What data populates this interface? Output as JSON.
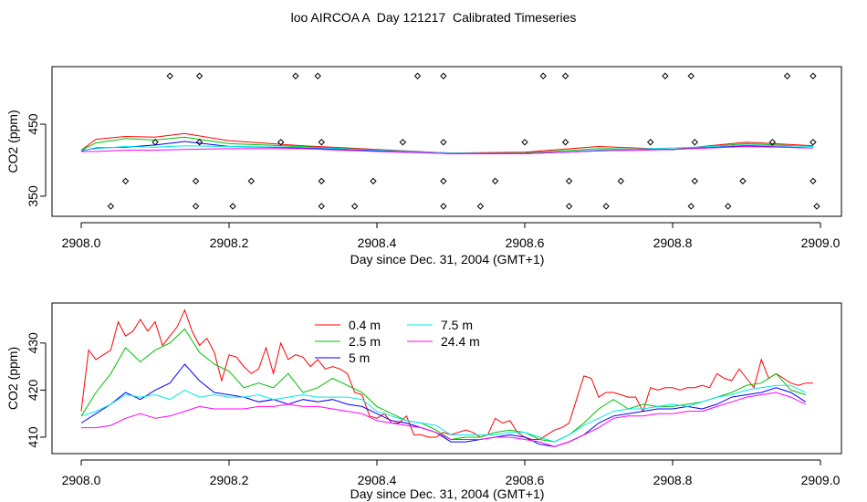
{
  "title": "loo AIRCOA A  Day 121217  Calibrated Timeseries",
  "chart_data": [
    {
      "type": "line",
      "xlabel": "Day since Dec. 31, 2004 (GMT+1)",
      "ylabel": "CO2 (ppm)",
      "xlim": [
        2908.0,
        2909.0
      ],
      "ylim": [
        322,
        530
      ],
      "xticks": [
        "2908.0",
        "2908.2",
        "2908.4",
        "2908.6",
        "2908.8",
        "2909.0"
      ],
      "yticks": [
        "350",
        "450"
      ],
      "legend": "none",
      "series": [
        {
          "color": "#ff0000",
          "x": [
            2908.0,
            2908.02,
            2908.06,
            2908.1,
            2908.14,
            2908.2,
            2908.3,
            2908.4,
            2908.5,
            2908.6,
            2908.7,
            2908.8,
            2908.9,
            2908.99
          ],
          "y": [
            414,
            429,
            433,
            432,
            437,
            427,
            420,
            415,
            410,
            411,
            419,
            415,
            425,
            420
          ]
        },
        {
          "color": "#00c000",
          "x": [
            2908.0,
            2908.02,
            2908.06,
            2908.1,
            2908.14,
            2908.2,
            2908.3,
            2908.4,
            2908.5,
            2908.6,
            2908.7,
            2908.8,
            2908.9,
            2908.99
          ],
          "y": [
            414,
            424,
            430,
            428,
            432,
            423,
            419,
            414,
            409,
            410,
            416,
            415,
            423,
            419
          ]
        },
        {
          "color": "#0000ff",
          "x": [
            2908.0,
            2908.02,
            2908.06,
            2908.1,
            2908.14,
            2908.2,
            2908.3,
            2908.4,
            2908.5,
            2908.6,
            2908.7,
            2908.8,
            2908.9,
            2908.99
          ],
          "y": [
            413,
            417,
            418,
            421,
            426,
            419,
            417,
            413,
            409,
            409,
            413,
            415,
            420,
            417
          ]
        },
        {
          "color": "#00e8e8",
          "x": [
            2908.0,
            2908.02,
            2908.06,
            2908.1,
            2908.14,
            2908.2,
            2908.3,
            2908.4,
            2908.5,
            2908.6,
            2908.7,
            2908.8,
            2908.9,
            2908.99
          ],
          "y": [
            414,
            416,
            419,
            418,
            420,
            419,
            418,
            414,
            410,
            409,
            414,
            417,
            421,
            419
          ]
        },
        {
          "color": "#ff00ff",
          "x": [
            2908.0,
            2908.02,
            2908.06,
            2908.1,
            2908.14,
            2908.2,
            2908.3,
            2908.4,
            2908.5,
            2908.6,
            2908.7,
            2908.8,
            2908.9,
            2908.99
          ],
          "y": [
            412,
            412,
            414,
            414,
            415,
            416,
            416,
            412,
            409,
            409,
            413,
            415,
            419,
            417
          ]
        }
      ],
      "markers": [
        {
          "x": [
            2908.12,
            2908.16,
            2908.29,
            2908.32,
            2908.455,
            2908.49,
            2908.625,
            2908.655,
            2908.79,
            2908.825,
            2908.955,
            2908.99
          ],
          "y": 517
        },
        {
          "x": [
            2908.1,
            2908.16,
            2908.27,
            2908.325,
            2908.435,
            2908.49,
            2908.6,
            2908.655,
            2908.77,
            2908.83,
            2908.935,
            2908.99
          ],
          "y": 425
        },
        {
          "x": [
            2908.06,
            2908.155,
            2908.23,
            2908.325,
            2908.395,
            2908.49,
            2908.56,
            2908.66,
            2908.73,
            2908.83,
            2908.895,
            2908.99
          ],
          "y": 371
        },
        {
          "x": [
            2908.04,
            2908.155,
            2908.205,
            2908.325,
            2908.37,
            2908.49,
            2908.54,
            2908.66,
            2908.71,
            2908.825,
            2908.875,
            2908.995
          ],
          "y": 336
        }
      ]
    },
    {
      "type": "line",
      "xlabel": "Day since Dec. 31, 2004 (GMT+1)",
      "ylabel": "CO2 (ppm)",
      "xlim": [
        2908.0,
        2909.0
      ],
      "ylim": [
        406.5,
        438.5
      ],
      "xticks": [
        "2908.0",
        "2908.2",
        "2908.4",
        "2908.6",
        "2908.8",
        "2909.0"
      ],
      "yticks": [
        "410",
        "420",
        "430"
      ],
      "legend": "top-left",
      "series": [
        {
          "name": "0.4 m",
          "color": "#ff0000",
          "x": [
            2908.0,
            2908.01,
            2908.02,
            2908.03,
            2908.04,
            2908.05,
            2908.06,
            2908.07,
            2908.08,
            2908.09,
            2908.1,
            2908.11,
            2908.12,
            2908.13,
            2908.14,
            2908.15,
            2908.16,
            2908.17,
            2908.18,
            2908.19,
            2908.2,
            2908.21,
            2908.22,
            2908.23,
            2908.24,
            2908.25,
            2908.26,
            2908.27,
            2908.28,
            2908.29,
            2908.3,
            2908.31,
            2908.32,
            2908.33,
            2908.34,
            2908.35,
            2908.36,
            2908.37,
            2908.38,
            2908.39,
            2908.4,
            2908.41,
            2908.42,
            2908.43,
            2908.44,
            2908.45,
            2908.46,
            2908.47,
            2908.48,
            2908.49,
            2908.5,
            2908.51,
            2908.52,
            2908.53,
            2908.54,
            2908.55,
            2908.56,
            2908.57,
            2908.58,
            2908.59,
            2908.6,
            2908.61,
            2908.62,
            2908.63,
            2908.64,
            2908.65,
            2908.66,
            2908.67,
            2908.68,
            2908.69,
            2908.7,
            2908.71,
            2908.72,
            2908.73,
            2908.74,
            2908.75,
            2908.76,
            2908.77,
            2908.78,
            2908.79,
            2908.8,
            2908.81,
            2908.82,
            2908.83,
            2908.84,
            2908.85,
            2908.86,
            2908.87,
            2908.88,
            2908.89,
            2908.9,
            2908.91,
            2908.92,
            2908.93,
            2908.94,
            2908.95,
            2908.96,
            2908.97,
            2908.98,
            2908.99
          ],
          "y": [
            415.5,
            428.5,
            426.5,
            427.5,
            428.5,
            434.5,
            431.5,
            432.5,
            435,
            432.5,
            434.5,
            429.5,
            431.5,
            433.5,
            437,
            432.5,
            429.5,
            431,
            428,
            422,
            427.5,
            427,
            425,
            423.5,
            424.5,
            429,
            423.5,
            430,
            426.5,
            427.5,
            427,
            425,
            426.5,
            424.5,
            425,
            424.5,
            423.5,
            419.5,
            419,
            414.5,
            414,
            415,
            413,
            413,
            414.5,
            410.5,
            410.5,
            410,
            410,
            411,
            410.5,
            411,
            411.5,
            411,
            410,
            410.5,
            414,
            413,
            413.5,
            411,
            410,
            409.5,
            409.5,
            410.5,
            411.5,
            412,
            413,
            418,
            423,
            422.5,
            418.5,
            419.5,
            419.5,
            419,
            418.5,
            418.5,
            415.5,
            420.5,
            420,
            420.5,
            420.5,
            420,
            420.5,
            420.5,
            421,
            420.5,
            423.5,
            422.5,
            422,
            424.5,
            422.5,
            420.5,
            426.5,
            422.5,
            423.5,
            422.5,
            421.5,
            421,
            421.5,
            421.5
          ]
        },
        {
          "name": "2.5 m",
          "color": "#00c000",
          "x": [
            2908.0,
            2908.02,
            2908.04,
            2908.06,
            2908.08,
            2908.1,
            2908.12,
            2908.14,
            2908.16,
            2908.18,
            2908.2,
            2908.22,
            2908.24,
            2908.26,
            2908.28,
            2908.3,
            2908.32,
            2908.34,
            2908.36,
            2908.38,
            2908.4,
            2908.42,
            2908.44,
            2908.46,
            2908.48,
            2908.5,
            2908.52,
            2908.54,
            2908.56,
            2908.58,
            2908.6,
            2908.62,
            2908.64,
            2908.66,
            2908.68,
            2908.7,
            2908.72,
            2908.74,
            2908.76,
            2908.78,
            2908.8,
            2908.82,
            2908.84,
            2908.86,
            2908.88,
            2908.9,
            2908.92,
            2908.94,
            2908.96,
            2908.98
          ],
          "y": [
            414.5,
            419.5,
            423.5,
            429,
            426,
            428.5,
            430,
            433,
            428,
            425.5,
            424,
            420.5,
            421.5,
            420.5,
            423.5,
            419.5,
            420.5,
            422.5,
            421,
            419.5,
            416.5,
            415,
            413.5,
            413,
            411.5,
            409.5,
            410,
            410,
            411,
            411.5,
            411,
            409.5,
            409,
            410.5,
            413,
            416,
            418,
            416,
            417,
            416.5,
            416.5,
            417,
            417.5,
            418.5,
            419.5,
            421,
            421.5,
            423.5,
            420,
            419
          ]
        },
        {
          "name": "5 m",
          "color": "#0000ff",
          "x": [
            2908.0,
            2908.02,
            2908.04,
            2908.06,
            2908.08,
            2908.1,
            2908.12,
            2908.14,
            2908.16,
            2908.18,
            2908.2,
            2908.22,
            2908.24,
            2908.26,
            2908.28,
            2908.3,
            2908.32,
            2908.34,
            2908.36,
            2908.38,
            2908.4,
            2908.42,
            2908.44,
            2908.46,
            2908.48,
            2908.5,
            2908.52,
            2908.54,
            2908.56,
            2908.58,
            2908.6,
            2908.62,
            2908.64,
            2908.66,
            2908.68,
            2908.7,
            2908.72,
            2908.74,
            2908.76,
            2908.78,
            2908.8,
            2908.82,
            2908.84,
            2908.86,
            2908.88,
            2908.9,
            2908.92,
            2908.94,
            2908.96,
            2908.98
          ],
          "y": [
            413,
            415,
            417,
            419.5,
            418,
            420,
            421.5,
            425.5,
            422,
            419.5,
            419,
            418.5,
            417.5,
            418,
            417,
            418,
            417.5,
            418,
            417,
            416.5,
            415,
            413.5,
            413,
            412,
            411,
            409,
            409,
            409.5,
            410,
            410.5,
            410,
            408.5,
            408,
            409,
            410.5,
            413,
            414.5,
            415,
            415.5,
            416,
            416,
            416.5,
            416,
            417,
            418.5,
            419,
            419.5,
            420.5,
            419.5,
            417.5
          ]
        },
        {
          "name": "7.5 m",
          "color": "#00e8e8",
          "x": [
            2908.0,
            2908.02,
            2908.04,
            2908.06,
            2908.08,
            2908.1,
            2908.12,
            2908.14,
            2908.16,
            2908.18,
            2908.2,
            2908.22,
            2908.24,
            2908.26,
            2908.28,
            2908.3,
            2908.32,
            2908.34,
            2908.36,
            2908.38,
            2908.4,
            2908.42,
            2908.44,
            2908.46,
            2908.48,
            2908.5,
            2908.52,
            2908.54,
            2908.56,
            2908.58,
            2908.6,
            2908.62,
            2908.64,
            2908.66,
            2908.68,
            2908.7,
            2908.72,
            2908.74,
            2908.76,
            2908.78,
            2908.8,
            2908.82,
            2908.84,
            2908.86,
            2908.88,
            2908.9,
            2908.92,
            2908.94,
            2908.96,
            2908.98
          ],
          "y": [
            414.5,
            415.5,
            417,
            419,
            418.5,
            419,
            418,
            420,
            418.5,
            419,
            418.5,
            418.5,
            419,
            418,
            418.5,
            419,
            418.5,
            418.5,
            418.5,
            418,
            415.5,
            414.5,
            413.5,
            413,
            412.5,
            410.5,
            410.5,
            410.5,
            410.5,
            411,
            411,
            410,
            409,
            410.5,
            412.5,
            414,
            415.5,
            416,
            416,
            416.5,
            417,
            416.5,
            417.5,
            418.5,
            419,
            420,
            420.5,
            421,
            421,
            419.5
          ]
        },
        {
          "name": "24.4 m",
          "color": "#ff00ff",
          "x": [
            2908.0,
            2908.02,
            2908.04,
            2908.06,
            2908.08,
            2908.1,
            2908.12,
            2908.14,
            2908.16,
            2908.18,
            2908.2,
            2908.22,
            2908.24,
            2908.26,
            2908.28,
            2908.3,
            2908.32,
            2908.34,
            2908.36,
            2908.38,
            2908.4,
            2908.42,
            2908.44,
            2908.46,
            2908.48,
            2908.5,
            2908.52,
            2908.54,
            2908.56,
            2908.58,
            2908.6,
            2908.62,
            2908.64,
            2908.66,
            2908.68,
            2908.7,
            2908.72,
            2908.74,
            2908.76,
            2908.78,
            2908.8,
            2908.82,
            2908.84,
            2908.86,
            2908.88,
            2908.9,
            2908.92,
            2908.94,
            2908.96,
            2908.98
          ],
          "y": [
            412,
            412,
            412.5,
            414,
            415,
            414,
            414.5,
            415.5,
            416.5,
            416,
            416,
            416,
            416.5,
            416.5,
            417,
            416.5,
            416.5,
            416,
            415.5,
            415,
            413.5,
            413,
            412.5,
            412,
            411,
            409.5,
            409.5,
            409.5,
            410,
            410,
            409.5,
            409,
            408,
            409,
            410.5,
            412,
            414,
            414.5,
            414.5,
            415,
            415,
            415.5,
            415.5,
            416.5,
            417.5,
            418.5,
            419,
            419.5,
            418.5,
            417
          ]
        }
      ]
    }
  ]
}
